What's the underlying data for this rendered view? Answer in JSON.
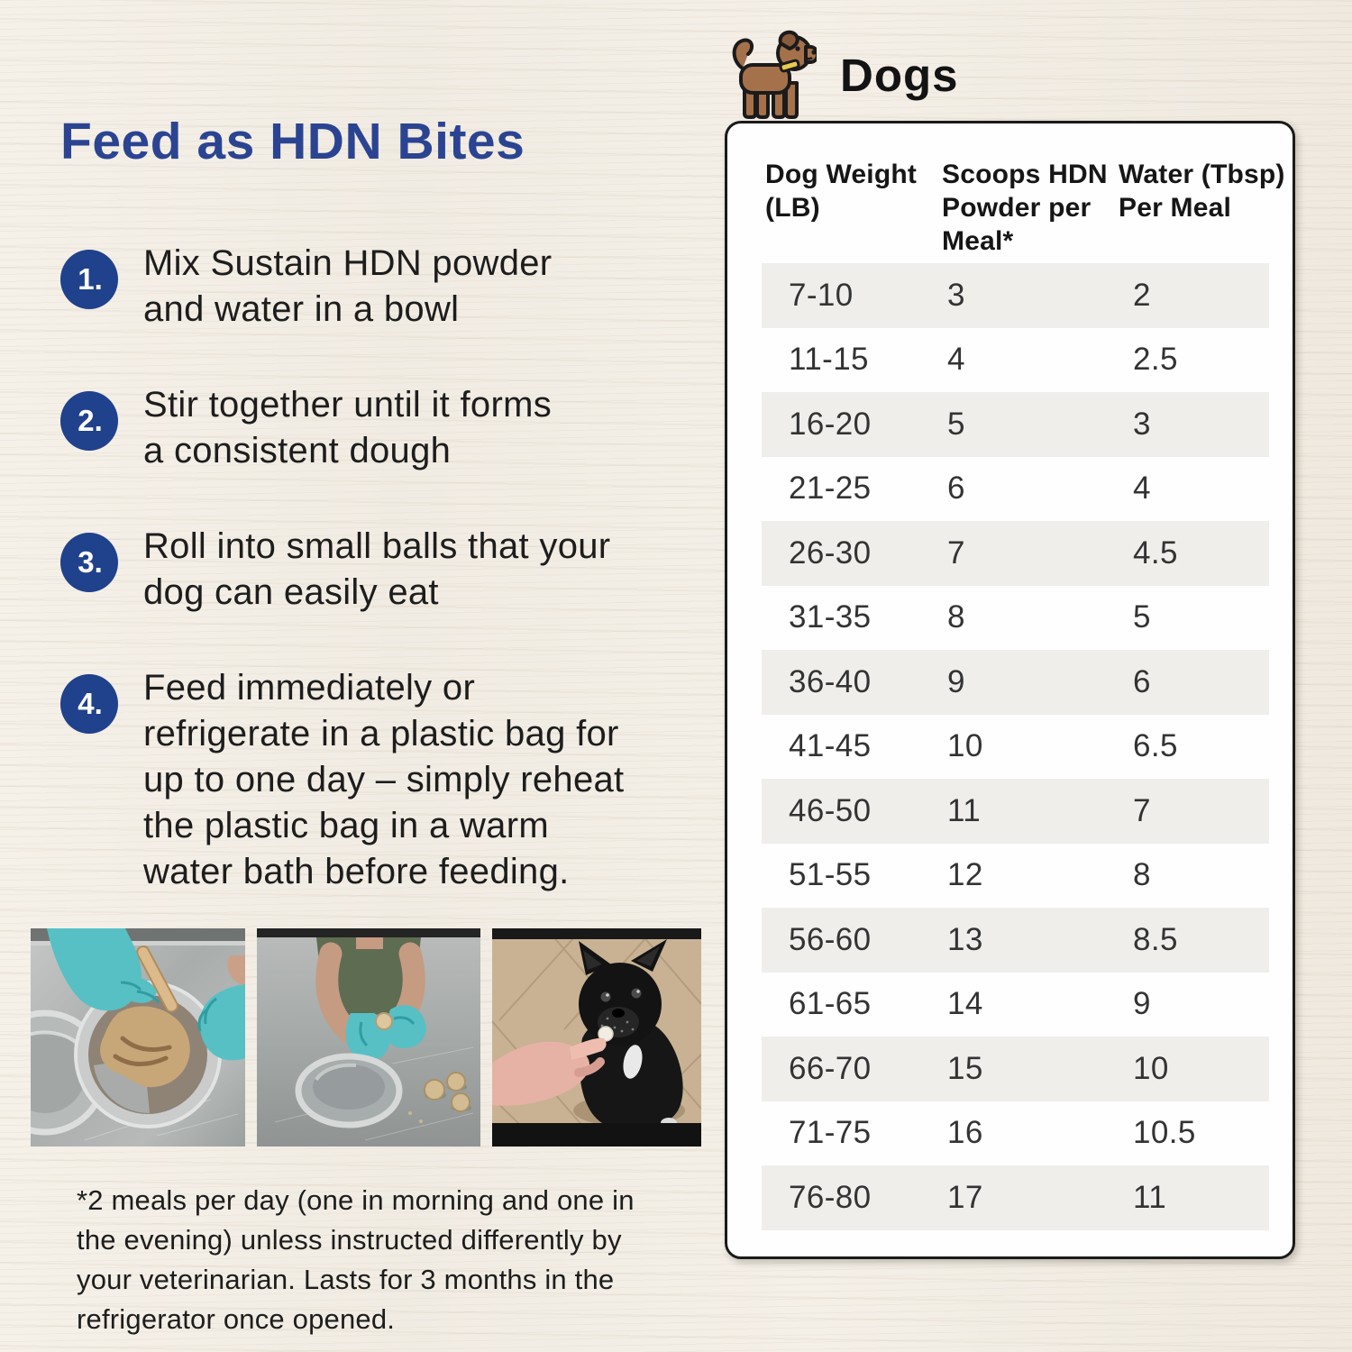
{
  "title": {
    "text": "Feed as HDN Bites"
  },
  "steps": [
    {
      "num": "1.",
      "text": "Mix Sustain HDN powder\nand water in a bowl"
    },
    {
      "num": "2.",
      "text": "Stir together until it forms\na consistent dough"
    },
    {
      "num": "3.",
      "text": "Roll into small balls that your\ndog can easily eat"
    },
    {
      "num": "4.",
      "text": "Feed immediately or\nrefrigerate in a plastic bag for\nup to one day – simply reheat\nthe plastic bag in a warm\nwater bath before feeding."
    }
  ],
  "footnote": "*2 meals per day (one in morning and one in\nthe evening) unless instructed differently by\nyour veterinarian. Lasts for 3 months in the\nrefrigerator once opened.",
  "photos": [
    {
      "name": "mixing-powder-photo"
    },
    {
      "name": "rolling-balls-photo"
    },
    {
      "name": "feeding-dog-photo"
    }
  ],
  "dogs_section": {
    "heading": "Dogs",
    "icon": "dog-icon",
    "table": {
      "columns": [
        "Dog Weight\n(LB)",
        "Scoops HDN\nPowder per\nMeal*",
        "Water (Tbsp)\nPer Meal"
      ],
      "rows": [
        [
          "7-10",
          "3",
          "2"
        ],
        [
          "11-15",
          "4",
          "2.5"
        ],
        [
          "16-20",
          "5",
          "3"
        ],
        [
          "21-25",
          "6",
          "4"
        ],
        [
          "26-30",
          "7",
          "4.5"
        ],
        [
          "31-35",
          "8",
          "5"
        ],
        [
          "36-40",
          "9",
          "6"
        ],
        [
          "41-45",
          "10",
          "6.5"
        ],
        [
          "46-50",
          "11",
          "7"
        ],
        [
          "51-55",
          "12",
          "8"
        ],
        [
          "56-60",
          "13",
          "8.5"
        ],
        [
          "61-65",
          "14",
          "9"
        ],
        [
          "66-70",
          "15",
          "10"
        ],
        [
          "71-75",
          "16",
          "10.5"
        ],
        [
          "76-80",
          "17",
          "11"
        ]
      ]
    }
  },
  "colors": {
    "accent_blue": "#2b4492",
    "circle_blue": "#20418c",
    "stripe_gray": "#efeeeb",
    "card_border": "#1a1a1a",
    "background": "#f2ede4",
    "text": "#1c1c1c"
  }
}
